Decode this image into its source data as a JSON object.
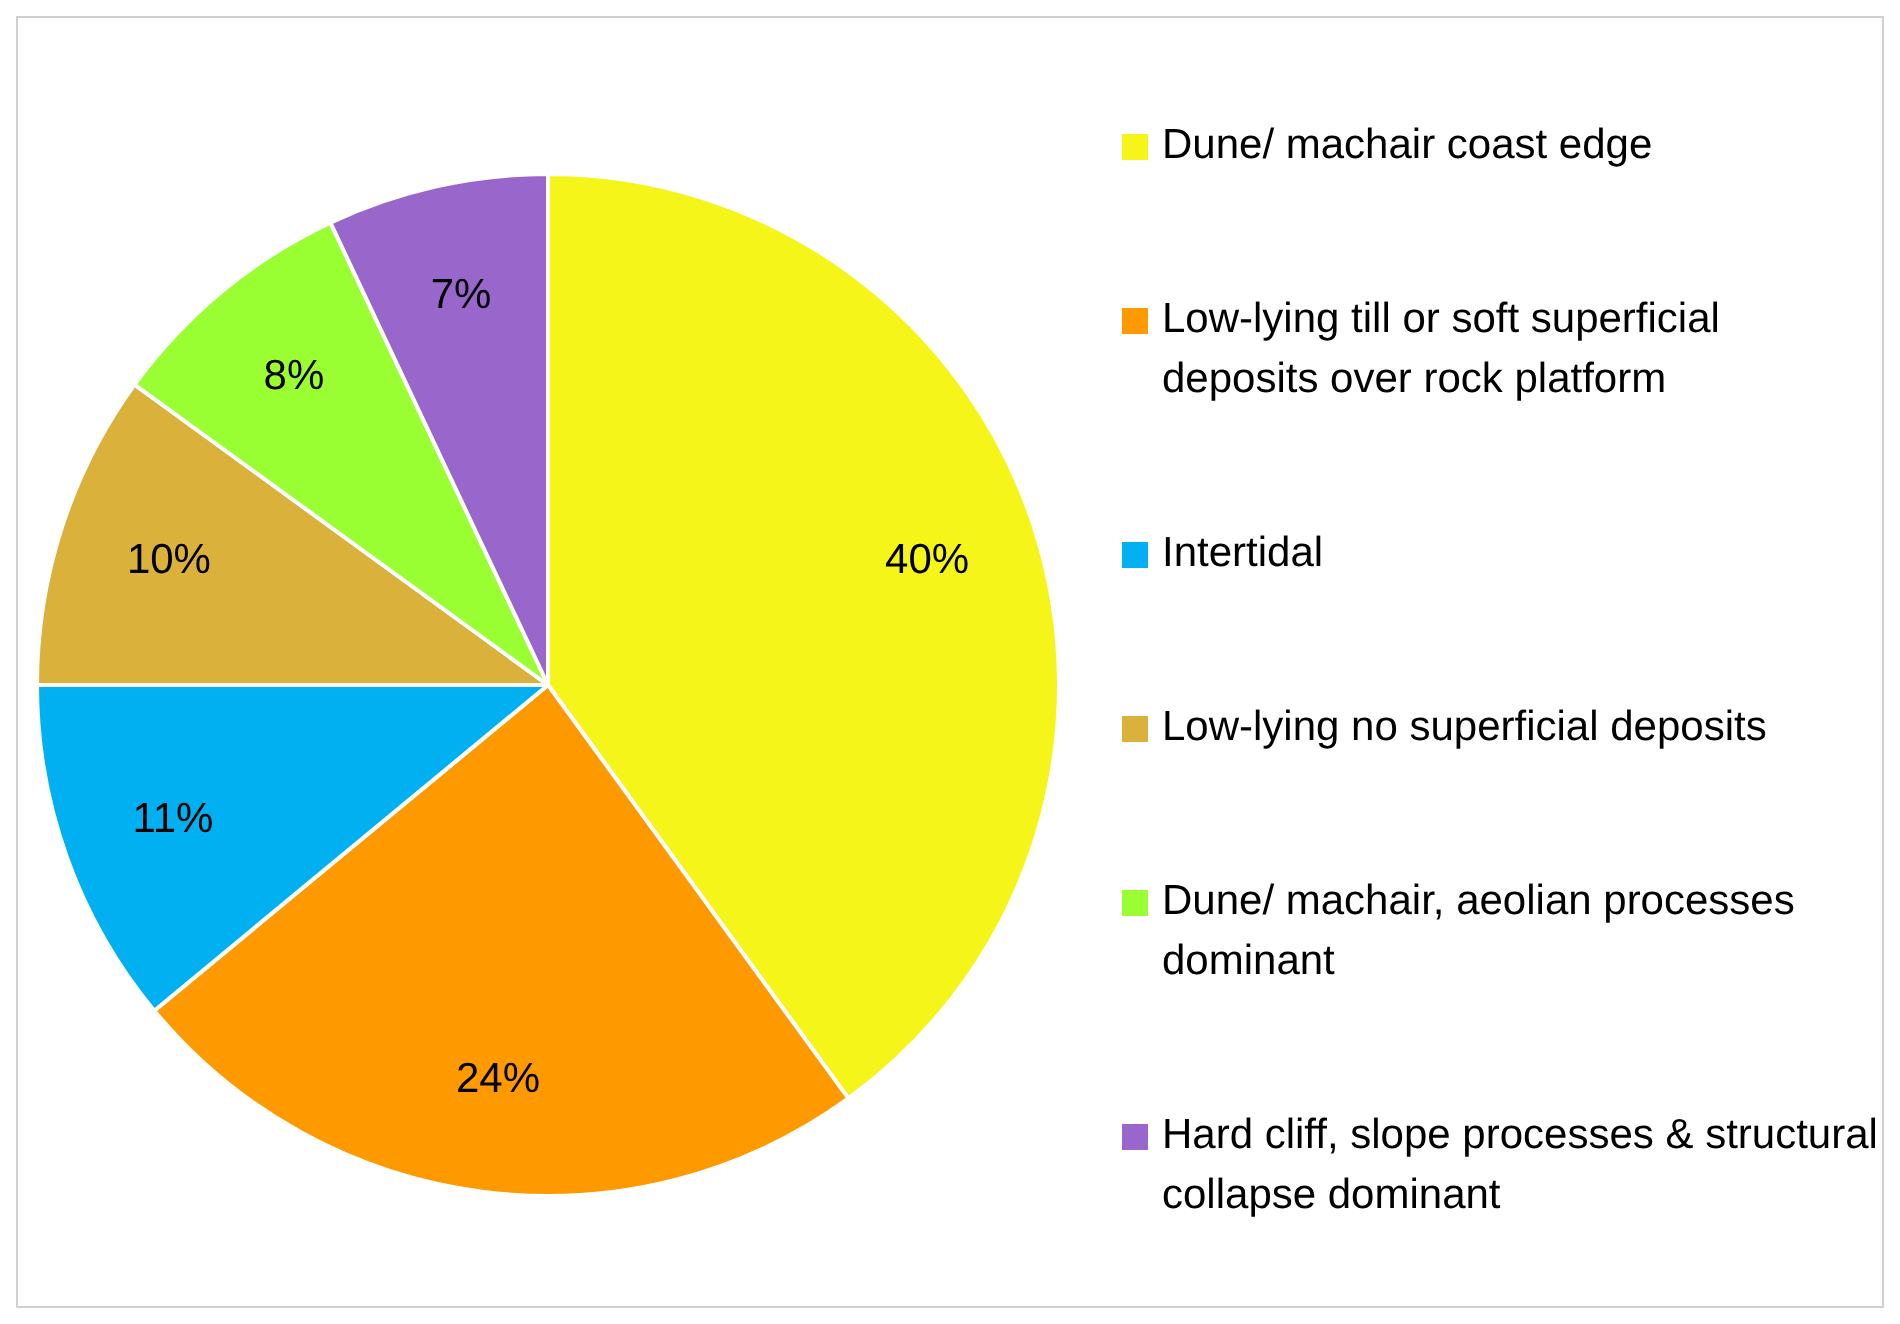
{
  "chart_data": {
    "type": "pie",
    "categories": [
      "Dune/ machair coast edge",
      "Low-lying till or soft superficial deposits over rock platform",
      "Intertidal",
      "Low-lying  no superficial deposits",
      "Dune/ machair, aeolian processes dominant",
      "Hard cliff, slope processes & structural collapse dominant"
    ],
    "values": [
      40,
      24,
      11,
      10,
      8,
      7
    ],
    "value_labels": [
      "40%",
      "24%",
      "11%",
      "10%",
      "8%",
      "7%"
    ],
    "colors": [
      "#f5f51a",
      "#ff9900",
      "#00b0f0",
      "#d9b13b",
      "#99ff33",
      "#9966cc"
    ],
    "legend": "right"
  }
}
